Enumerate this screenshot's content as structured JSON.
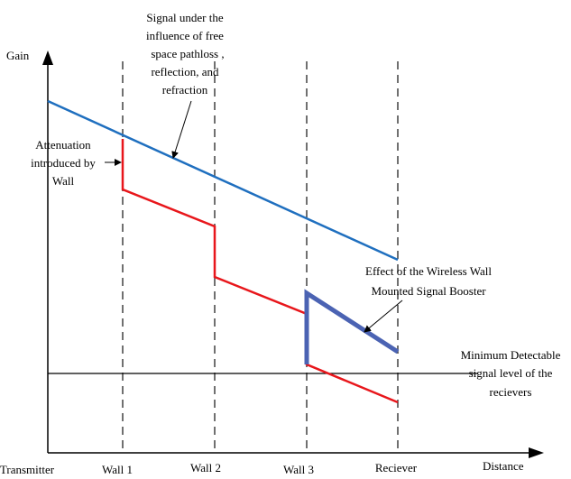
{
  "axes": {
    "y_label": "Gain",
    "x_label": "Distance"
  },
  "positions": [
    "Transmitter",
    "Wall 1",
    "Wall 2",
    "Wall 3",
    "Reciever"
  ],
  "annotations": {
    "free_space": [
      "Signal under the",
      "influence of free",
      "space pathloss ,",
      "reflection, and",
      "refraction"
    ],
    "wall_attenuation": [
      "Attenuation",
      "introduced by",
      "Wall"
    ],
    "booster": [
      "Effect of the Wireless Wall",
      "Mounted Signal Booster"
    ],
    "min_level": [
      "Minimum Detectable",
      "signal level of the",
      "recievers"
    ]
  },
  "colors": {
    "free_space_signal": "#1f6fbf",
    "attenuated_signal": "#e8161b",
    "boosted_signal": "#4b63b3",
    "axis": "#000000",
    "wall_line": "#333333"
  },
  "icons": {
    "x_axis_arrow": "arrow-right",
    "y_axis_arrow": "arrow-up"
  }
}
